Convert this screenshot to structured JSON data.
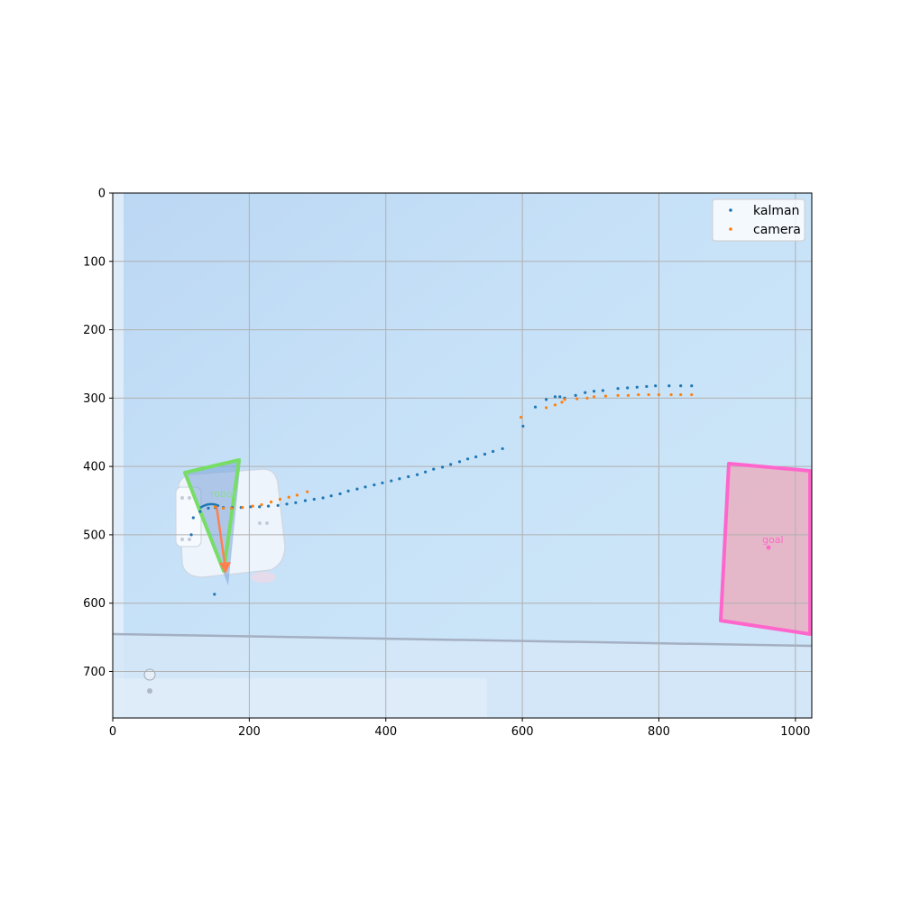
{
  "chart_data": {
    "type": "scatter",
    "title": "",
    "xlabel": "",
    "ylabel": "",
    "xlim": [
      0,
      1024
    ],
    "ylim": [
      768,
      0
    ],
    "y_inverted": true,
    "grid": true,
    "legend_position": "top-right",
    "x_ticks": [
      0,
      200,
      400,
      600,
      800,
      1000
    ],
    "y_ticks": [
      0,
      100,
      200,
      300,
      400,
      500,
      600,
      700
    ],
    "background": "camera image of a table with a robot on the left and a pink goal patch on the right",
    "series": [
      {
        "name": "kalman",
        "color": "#1f77b4",
        "points": [
          [
            149,
            587
          ],
          [
            115,
            500
          ],
          [
            118,
            475
          ],
          [
            128,
            466
          ],
          [
            140,
            461
          ],
          [
            150,
            460
          ],
          [
            162,
            460
          ],
          [
            175,
            460
          ],
          [
            188,
            460
          ],
          [
            202,
            459
          ],
          [
            215,
            459
          ],
          [
            228,
            458
          ],
          [
            242,
            457
          ],
          [
            255,
            455
          ],
          [
            268,
            453
          ],
          [
            282,
            450
          ],
          [
            295,
            448
          ],
          [
            308,
            446
          ],
          [
            320,
            443
          ],
          [
            333,
            440
          ],
          [
            345,
            436
          ],
          [
            358,
            433
          ],
          [
            370,
            430
          ],
          [
            383,
            427
          ],
          [
            395,
            424
          ],
          [
            408,
            421
          ],
          [
            420,
            418
          ],
          [
            433,
            415
          ],
          [
            446,
            412
          ],
          [
            458,
            408
          ],
          [
            470,
            404
          ],
          [
            483,
            401
          ],
          [
            495,
            397
          ],
          [
            508,
            393
          ],
          [
            520,
            389
          ],
          [
            532,
            386
          ],
          [
            545,
            382
          ],
          [
            557,
            378
          ],
          [
            571,
            374
          ],
          [
            601,
            341
          ],
          [
            619,
            313
          ],
          [
            635,
            302
          ],
          [
            648,
            298
          ],
          [
            655,
            298
          ],
          [
            662,
            300
          ],
          [
            678,
            296
          ],
          [
            692,
            292
          ],
          [
            705,
            290
          ],
          [
            718,
            289
          ],
          [
            740,
            286
          ],
          [
            754,
            285
          ],
          [
            768,
            284
          ],
          [
            782,
            283
          ],
          [
            795,
            282
          ],
          [
            815,
            282
          ],
          [
            832,
            282
          ],
          [
            848,
            282
          ]
        ]
      },
      {
        "name": "camera",
        "color": "#ff7f0e",
        "points": [
          [
            150,
            459
          ],
          [
            162,
            461
          ],
          [
            174,
            461
          ],
          [
            190,
            460
          ],
          [
            205,
            458
          ],
          [
            218,
            456
          ],
          [
            232,
            452
          ],
          [
            245,
            448
          ],
          [
            258,
            445
          ],
          [
            270,
            442
          ],
          [
            285,
            437
          ],
          [
            598,
            328
          ],
          [
            635,
            314
          ],
          [
            648,
            310
          ],
          [
            658,
            306
          ],
          [
            662,
            302
          ],
          [
            680,
            301
          ],
          [
            695,
            300
          ],
          [
            705,
            298
          ],
          [
            722,
            297
          ],
          [
            740,
            296
          ],
          [
            755,
            296
          ],
          [
            770,
            295
          ],
          [
            785,
            295
          ],
          [
            800,
            295
          ],
          [
            818,
            295
          ],
          [
            832,
            295
          ],
          [
            848,
            295
          ]
        ]
      }
    ],
    "annotations": [
      {
        "label": "robot",
        "color": "#88e088"
      },
      {
        "label": "goal",
        "color": "#ff69c8"
      }
    ]
  },
  "colors": {
    "kalman": "#1f77b4",
    "camera": "#ff7f0e",
    "robot_outline": "#77dd66",
    "goal_outline": "#ff66cc",
    "arrow": "#ff7f50",
    "grid": "#b0b0b0"
  }
}
